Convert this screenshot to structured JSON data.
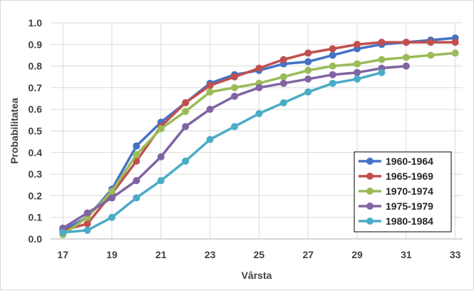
{
  "chart_data": {
    "type": "line",
    "xlabel": "Vârsta",
    "ylabel": "Probabilitatea",
    "xlim": [
      16.5,
      33.3
    ],
    "ylim": [
      0,
      1.0
    ],
    "x_ticks": [
      17,
      19,
      21,
      23,
      25,
      27,
      29,
      31,
      33
    ],
    "x_tick_labels": [
      "17",
      "19",
      "21",
      "23",
      "25",
      "27",
      "29",
      "31",
      "33"
    ],
    "y_ticks": [
      0,
      0.1,
      0.2,
      0.3,
      0.4,
      0.5,
      0.6,
      0.7,
      0.8,
      0.9,
      1.0
    ],
    "y_tick_labels": [
      "0.0",
      "0.1",
      "0.2",
      "0.3",
      "0.4",
      "0.5",
      "0.6",
      "0.7",
      "0.8",
      "0.9",
      "1.0"
    ],
    "grid": "both",
    "legend_position": "bottom-right",
    "series": [
      {
        "name": "1960-1964",
        "color": "#4472c4",
        "x": [
          17,
          18,
          19,
          20,
          21,
          22,
          23,
          24,
          25,
          26,
          27,
          28,
          29,
          30,
          31,
          32,
          33
        ],
        "values": [
          0.04,
          0.1,
          0.23,
          0.43,
          0.54,
          0.63,
          0.72,
          0.76,
          0.78,
          0.81,
          0.82,
          0.85,
          0.88,
          0.9,
          0.91,
          0.92,
          0.93
        ]
      },
      {
        "name": "1965-1969",
        "color": "#c0504d",
        "x": [
          17,
          18,
          19,
          20,
          21,
          22,
          23,
          24,
          25,
          26,
          27,
          28,
          29,
          30,
          31,
          32,
          33
        ],
        "values": [
          0.04,
          0.07,
          0.21,
          0.36,
          0.52,
          0.63,
          0.71,
          0.75,
          0.79,
          0.83,
          0.86,
          0.88,
          0.9,
          0.91,
          0.91,
          0.91,
          0.91
        ]
      },
      {
        "name": "1970-1974",
        "color": "#9bbb59",
        "x": [
          17,
          18,
          19,
          20,
          21,
          22,
          23,
          24,
          25,
          26,
          27,
          28,
          29,
          30,
          31,
          32,
          33
        ],
        "values": [
          0.02,
          0.1,
          0.22,
          0.39,
          0.51,
          0.59,
          0.68,
          0.7,
          0.72,
          0.75,
          0.78,
          0.8,
          0.81,
          0.83,
          0.84,
          0.85,
          0.86
        ]
      },
      {
        "name": "1975-1979",
        "color": "#8064a2",
        "x": [
          17,
          18,
          19,
          20,
          21,
          22,
          23,
          24,
          25,
          26,
          27,
          28,
          29,
          30,
          31
        ],
        "values": [
          0.05,
          0.12,
          0.19,
          0.27,
          0.38,
          0.52,
          0.6,
          0.66,
          0.7,
          0.72,
          0.74,
          0.76,
          0.77,
          0.79,
          0.8
        ]
      },
      {
        "name": "1980-1984",
        "color": "#4bacc6",
        "x": [
          17,
          18,
          19,
          20,
          21,
          22,
          23,
          24,
          25,
          26,
          27,
          28,
          29,
          30
        ],
        "values": [
          0.03,
          0.04,
          0.1,
          0.19,
          0.27,
          0.36,
          0.46,
          0.52,
          0.58,
          0.63,
          0.68,
          0.72,
          0.74,
          0.77
        ]
      }
    ]
  }
}
